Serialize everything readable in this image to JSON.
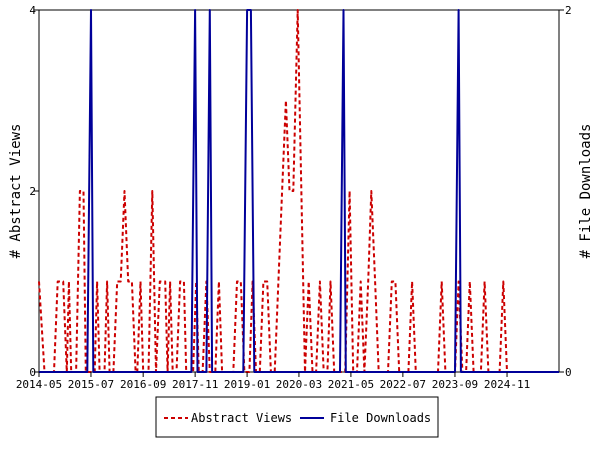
{
  "chart_data": {
    "type": "line",
    "title": "",
    "xlabel": "",
    "ylabel_left": "# Abstract Views",
    "ylabel_right": "# File Downloads",
    "x_range": [
      "2014-05",
      "2026-01"
    ],
    "ylim_left": [
      0,
      4
    ],
    "ylim_right": [
      0,
      2
    ],
    "left_ticks": [
      "0",
      "2",
      "4"
    ],
    "right_ticks": [
      "0",
      "2"
    ],
    "x_ticks": [
      "2014-05",
      "2015-07",
      "2016-09",
      "2017-11",
      "2019-01",
      "2020-03",
      "2021-05",
      "2022-07",
      "2023-09",
      "2024-11"
    ],
    "grid": false,
    "legend_position": "bottom-center",
    "series": [
      {
        "name": "Abstract Views",
        "axis": "left",
        "color": "#cc0000",
        "style": "dashed",
        "points": [
          [
            "2014-05-01",
            1
          ],
          [
            "2014-06-15",
            0
          ],
          [
            "2014-09-01",
            0
          ],
          [
            "2014-10-01",
            1
          ],
          [
            "2014-11-15",
            1
          ],
          [
            "2014-12-15",
            0
          ],
          [
            "2015-01-01",
            1
          ],
          [
            "2015-01-20",
            0
          ],
          [
            "2015-03-01",
            0
          ],
          [
            "2015-04-01",
            2
          ],
          [
            "2015-05-01",
            2
          ],
          [
            "2015-05-20",
            0
          ],
          [
            "2015-08-01",
            0
          ],
          [
            "2015-08-20",
            1
          ],
          [
            "2015-09-10",
            0
          ],
          [
            "2015-10-20",
            0
          ],
          [
            "2015-11-10",
            1
          ],
          [
            "2015-12-01",
            0
          ],
          [
            "2016-01-01",
            0
          ],
          [
            "2016-02-01",
            1
          ],
          [
            "2016-03-01",
            1
          ],
          [
            "2016-04-01",
            2
          ],
          [
            "2016-05-01",
            1
          ],
          [
            "2016-06-01",
            1
          ],
          [
            "2016-07-01",
            0
          ],
          [
            "2016-07-15",
            0
          ],
          [
            "2016-08-10",
            1
          ],
          [
            "2016-09-01",
            0
          ],
          [
            "2016-10-15",
            0
          ],
          [
            "2016-11-15",
            2
          ],
          [
            "2016-12-15",
            0
          ],
          [
            "2017-01-15",
            1
          ],
          [
            "2017-03-01",
            1
          ],
          [
            "2017-03-20",
            0
          ],
          [
            "2017-04-10",
            1
          ],
          [
            "2017-05-01",
            0
          ],
          [
            "2017-06-01",
            0
          ],
          [
            "2017-07-01",
            1
          ],
          [
            "2017-08-01",
            1
          ],
          [
            "2017-08-20",
            0
          ],
          [
            "2017-10-15",
            0
          ],
          [
            "2017-11-10",
            1
          ],
          [
            "2017-12-01",
            0
          ],
          [
            "2018-01-01",
            0
          ],
          [
            "2018-02-01",
            1
          ],
          [
            "2018-03-01",
            0
          ],
          [
            "2018-04-15",
            0
          ],
          [
            "2018-05-15",
            1
          ],
          [
            "2018-06-10",
            0
          ],
          [
            "2018-09-10",
            0
          ],
          [
            "2018-10-10",
            1
          ],
          [
            "2018-11-10",
            1
          ],
          [
            "2018-12-10",
            0
          ],
          [
            "2019-01-20",
            0
          ],
          [
            "2019-02-15",
            1
          ],
          [
            "2019-03-15",
            0
          ],
          [
            "2019-04-15",
            0
          ],
          [
            "2019-05-15",
            1
          ],
          [
            "2019-06-15",
            1
          ],
          [
            "2019-07-15",
            0
          ],
          [
            "2019-08-15",
            0
          ],
          [
            "2019-09-15",
            1
          ],
          [
            "2019-10-15",
            2
          ],
          [
            "2019-11-15",
            3
          ],
          [
            "2019-12-15",
            2
          ],
          [
            "2020-01-15",
            2
          ],
          [
            "2020-02-20",
            4
          ],
          [
            "2020-04-20",
            0
          ],
          [
            "2020-05-20",
            1
          ],
          [
            "2020-06-20",
            0
          ],
          [
            "2020-07-20",
            0
          ],
          [
            "2020-08-20",
            1
          ],
          [
            "2020-09-20",
            0
          ],
          [
            "2020-10-20",
            0
          ],
          [
            "2020-11-15",
            1
          ],
          [
            "2020-12-15",
            0
          ],
          [
            "2021-03-15",
            0
          ],
          [
            "2021-04-20",
            2
          ],
          [
            "2021-05-20",
            0
          ],
          [
            "2021-06-20",
            0
          ],
          [
            "2021-07-20",
            1
          ],
          [
            "2021-08-20",
            0
          ],
          [
            "2021-09-20",
            1
          ],
          [
            "2021-10-15",
            2
          ],
          [
            "2021-11-15",
            1
          ],
          [
            "2021-12-15",
            0
          ],
          [
            "2022-03-01",
            0
          ],
          [
            "2022-04-01",
            1
          ],
          [
            "2022-05-01",
            1
          ],
          [
            "2022-06-01",
            0
          ],
          [
            "2022-08-15",
            0
          ],
          [
            "2022-09-15",
            1
          ],
          [
            "2022-10-15",
            0
          ],
          [
            "2023-04-15",
            0
          ],
          [
            "2023-05-15",
            1
          ],
          [
            "2023-06-15",
            0
          ],
          [
            "2023-09-01",
            0
          ],
          [
            "2023-10-01",
            1
          ],
          [
            "2023-11-01",
            0
          ],
          [
            "2023-12-01",
            0
          ],
          [
            "2024-01-01",
            1
          ],
          [
            "2024-02-01",
            0
          ],
          [
            "2024-04-01",
            0
          ],
          [
            "2024-05-01",
            1
          ],
          [
            "2024-06-01",
            0
          ],
          [
            "2024-09-01",
            0
          ],
          [
            "2024-10-01",
            1
          ],
          [
            "2024-11-01",
            0
          ],
          [
            "2026-01-01",
            0
          ]
        ]
      },
      {
        "name": "File Downloads",
        "axis": "right",
        "color": "#000099",
        "style": "solid",
        "points": [
          [
            "2014-05-01",
            0
          ],
          [
            "2015-06-01",
            0
          ],
          [
            "2015-07-01",
            2
          ],
          [
            "2015-07-20",
            0
          ],
          [
            "2017-10-01",
            0
          ],
          [
            "2017-11-01",
            2
          ],
          [
            "2017-11-20",
            0
          ],
          [
            "2018-02-01",
            0
          ],
          [
            "2018-03-01",
            2
          ],
          [
            "2018-03-20",
            0
          ],
          [
            "2018-12-01",
            0
          ],
          [
            "2019-01-01",
            2
          ],
          [
            "2019-02-01",
            2
          ],
          [
            "2019-03-01",
            0
          ],
          [
            "2021-02-01",
            0
          ],
          [
            "2021-03-01",
            2
          ],
          [
            "2021-03-20",
            0
          ],
          [
            "2023-09-01",
            0
          ],
          [
            "2023-10-01",
            2
          ],
          [
            "2023-10-20",
            0
          ],
          [
            "2026-01-01",
            0
          ]
        ]
      }
    ]
  }
}
